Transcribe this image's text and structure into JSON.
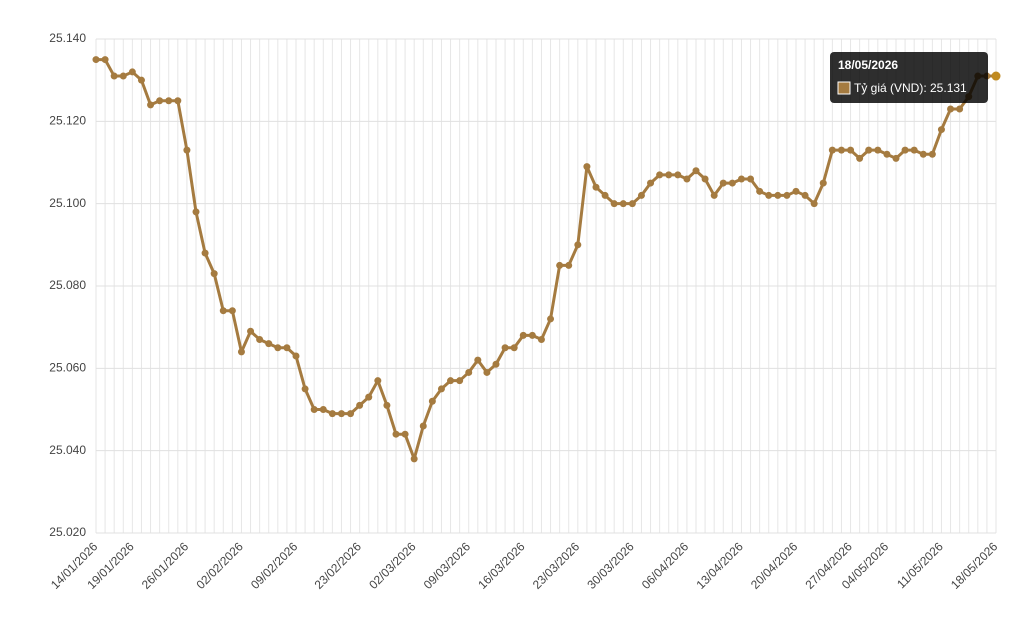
{
  "chart_data": {
    "type": "line",
    "categories": [
      "14/01/2026",
      null,
      null,
      null,
      "19/01/2026",
      null,
      null,
      null,
      null,
      null,
      "26/01/2026",
      null,
      null,
      null,
      null,
      null,
      "02/02/2026",
      null,
      null,
      null,
      null,
      null,
      "09/02/2026",
      null,
      null,
      null,
      null,
      null,
      null,
      "23/02/2026",
      null,
      null,
      null,
      null,
      null,
      "02/03/2026",
      null,
      null,
      null,
      null,
      null,
      "09/03/2026",
      null,
      null,
      null,
      null,
      null,
      "16/03/2026",
      null,
      null,
      null,
      null,
      null,
      "23/03/2026",
      null,
      null,
      null,
      null,
      null,
      "30/03/2026",
      null,
      null,
      null,
      null,
      null,
      "06/04/2026",
      null,
      null,
      null,
      null,
      null,
      "13/04/2026",
      null,
      null,
      null,
      null,
      null,
      "20/04/2026",
      null,
      null,
      null,
      null,
      null,
      "27/04/2026",
      null,
      null,
      null,
      "04/05/2026",
      null,
      null,
      null,
      null,
      null,
      "11/05/2026",
      null,
      null,
      null,
      null,
      null,
      "18/05/2026"
    ],
    "series": [
      {
        "name": "Tỷ giá (VND)",
        "color": "#a57b40",
        "values": [
          25135,
          25135,
          25131,
          25131,
          25132,
          25130,
          25124,
          25125,
          25125,
          25125,
          25113,
          25098,
          25088,
          25083,
          25074,
          25074,
          25064,
          25069,
          25067,
          25066,
          25065,
          25065,
          25063,
          25055,
          25050,
          25050,
          25049,
          25049,
          25049,
          25051,
          25053,
          25057,
          25051,
          25044,
          25044,
          25038,
          25046,
          25052,
          25055,
          25057,
          25057,
          25059,
          25062,
          25059,
          25061,
          25065,
          25065,
          25068,
          25068,
          25067,
          25072,
          25085,
          25085,
          25090,
          25109,
          25104,
          25102,
          25100,
          25100,
          25100,
          25102,
          25105,
          25107,
          25107,
          25107,
          25106,
          25108,
          25106,
          25102,
          25105,
          25105,
          25106,
          25106,
          25103,
          25102,
          25102,
          25102,
          25103,
          25102,
          25100,
          25105,
          25113,
          25113,
          25113,
          25111,
          25113,
          25113,
          25112,
          25111,
          25113,
          25113,
          25112,
          25112,
          25118,
          25123,
          25123,
          25126,
          25131,
          25131,
          25131
        ]
      }
    ],
    "ylim": [
      25020,
      25140
    ],
    "yticks": [
      {
        "value": 25020,
        "label": "25.020"
      },
      {
        "value": 25040,
        "label": "25.040"
      },
      {
        "value": 25060,
        "label": "25.060"
      },
      {
        "value": 25080,
        "label": "25.080"
      },
      {
        "value": 25100,
        "label": "25.100"
      },
      {
        "value": 25120,
        "label": "25.120"
      },
      {
        "value": 25140,
        "label": "25.140"
      }
    ],
    "grid": true,
    "tooltip": {
      "title": "18/05/2026",
      "label": "Tỷ giá (VND): 25.131",
      "index": 99
    }
  }
}
